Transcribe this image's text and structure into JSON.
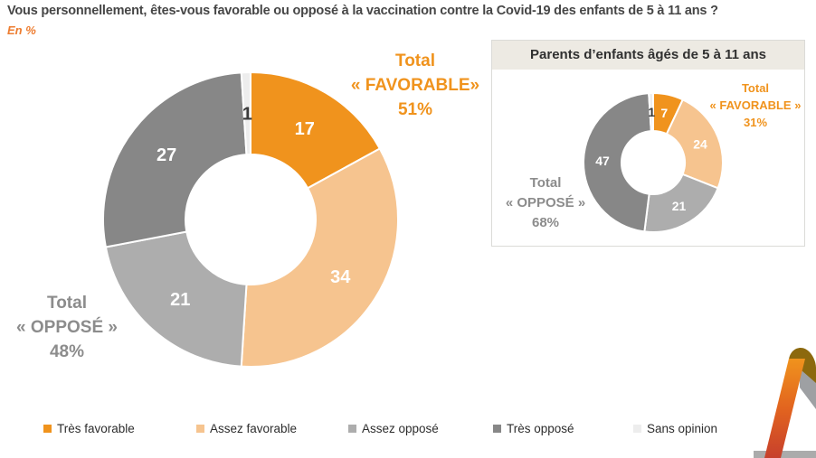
{
  "title": "Vous personnellement, êtes-vous favorable ou opposé à la vaccination contre la Covid-19 des enfants de 5 à 11 ans ?",
  "subtitle": "En %",
  "palette": {
    "tres_favorable": "#F0931D",
    "assez_favorable": "#F6C48F",
    "assez_oppose": "#ADADAD",
    "tres_oppose": "#878787",
    "sans_opinion": "#EDEDED",
    "favorable_text": "#F0931D",
    "oppose_text": "#8C8C8C",
    "title_text": "#464646",
    "subtitle_text": "#ED7D31"
  },
  "chart_data": [
    {
      "type": "pie",
      "style": "donut",
      "categories": [
        "Très favorable",
        "Assez favorable",
        "Assez opposé",
        "Très opposé",
        "Sans opinion"
      ],
      "values": [
        17,
        34,
        21,
        27,
        1
      ],
      "colors": [
        "#F0931D",
        "#F6C48F",
        "#ADADAD",
        "#878787",
        "#EDEDED"
      ],
      "annotations": {
        "favorable": {
          "lines": [
            "Total",
            "« FAVORABLE»",
            "51%"
          ]
        },
        "oppose": {
          "lines": [
            "Total",
            "« OPPOSÉ »",
            "48%"
          ]
        }
      }
    },
    {
      "type": "pie",
      "style": "donut",
      "title": "Parents d’enfants âgés de 5 à 11 ans",
      "categories": [
        "Très favorable",
        "Assez favorable",
        "Assez opposé",
        "Très opposé",
        "Sans opinion"
      ],
      "values": [
        7,
        24,
        21,
        47,
        1
      ],
      "colors": [
        "#F0931D",
        "#F6C48F",
        "#ADADAD",
        "#878787",
        "#EDEDED"
      ],
      "annotations": {
        "favorable": {
          "lines": [
            "Total",
            "« FAVORABLE »",
            "31%"
          ]
        },
        "oppose": {
          "lines": [
            "Total",
            "« OPPOSÉ »",
            "68%"
          ]
        }
      }
    }
  ],
  "legend": {
    "items": [
      {
        "label": "Très favorable",
        "color": "#F0931D"
      },
      {
        "label": "Assez favorable",
        "color": "#F6C48F"
      },
      {
        "label": "Assez opposé",
        "color": "#ADADAD"
      },
      {
        "label": "Très opposé",
        "color": "#878787"
      },
      {
        "label": "Sans opinion",
        "color": "#EDEDED"
      }
    ]
  },
  "logo_colors": {
    "band_top": "#F0931D",
    "band_mid": "#E2641F",
    "band_bottom": "#C7402C",
    "cap": "#8C690E",
    "leg": "#9EA0A3",
    "base": "#ABABAB"
  }
}
